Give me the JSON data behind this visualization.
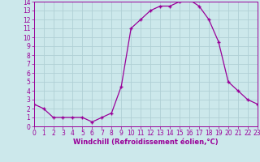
{
  "x": [
    0,
    1,
    2,
    3,
    4,
    5,
    6,
    7,
    8,
    9,
    10,
    11,
    12,
    13,
    14,
    15,
    16,
    17,
    18,
    19,
    20,
    21,
    22,
    23
  ],
  "y": [
    2.5,
    2.0,
    1.0,
    1.0,
    1.0,
    1.0,
    0.5,
    1.0,
    1.5,
    4.5,
    11.0,
    12.0,
    13.0,
    13.5,
    13.5,
    14.0,
    14.2,
    13.5,
    12.0,
    9.5,
    5.0,
    4.0,
    3.0,
    2.5
  ],
  "xlabel": "Windchill (Refroidissement éolien,°C)",
  "ylim": [
    0,
    14
  ],
  "xlim": [
    0,
    23
  ],
  "yticks": [
    0,
    1,
    2,
    3,
    4,
    5,
    6,
    7,
    8,
    9,
    10,
    11,
    12,
    13,
    14
  ],
  "xticks": [
    0,
    1,
    2,
    3,
    4,
    5,
    6,
    7,
    8,
    9,
    10,
    11,
    12,
    13,
    14,
    15,
    16,
    17,
    18,
    19,
    20,
    21,
    22,
    23
  ],
  "line_color": "#990099",
  "marker": "+",
  "bg_color": "#cce8eb",
  "grid_color": "#b0d0d5",
  "label_color": "#990099",
  "tick_color": "#990099",
  "spine_color": "#990099",
  "xlabel_fontsize": 6.0,
  "tick_fontsize": 5.5
}
